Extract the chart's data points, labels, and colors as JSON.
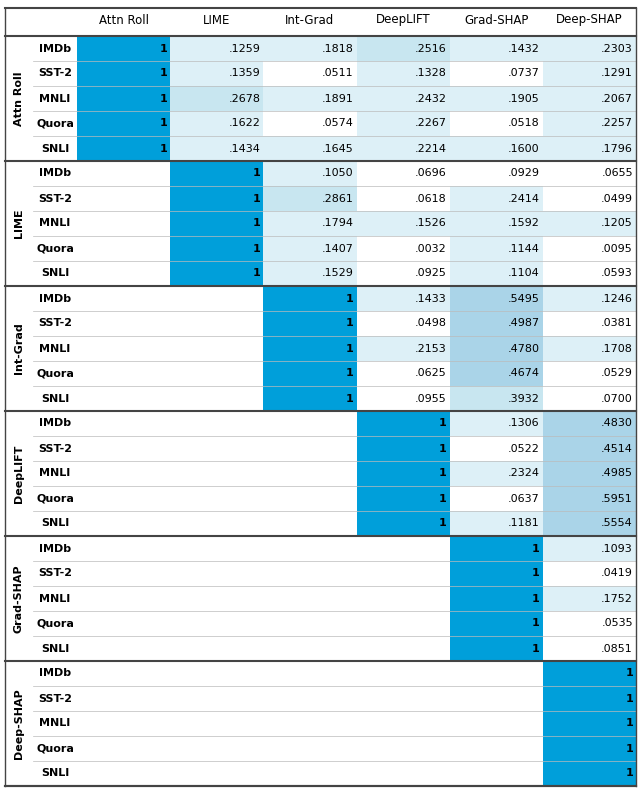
{
  "col_headers": [
    "Attn Roll",
    "LIME",
    "Int-Grad",
    "DeepLIFT",
    "Grad-SHAP",
    "Deep-SHAP"
  ],
  "row_groups": [
    "Attn Roll",
    "LIME",
    "Int-Grad",
    "DeepLIFT",
    "Grad-SHAP",
    "Deep-SHAP"
  ],
  "datasets": [
    "IMDb",
    "SST-2",
    "MNLI",
    "Quora",
    "SNLI"
  ],
  "matrix": [
    [
      [
        1.0,
        0.1259,
        0.1818,
        0.2516,
        0.1432,
        0.2303
      ],
      [
        1.0,
        0.1359,
        0.0511,
        0.1328,
        0.0737,
        0.1291
      ],
      [
        1.0,
        0.2678,
        0.1891,
        0.2432,
        0.1905,
        0.2067
      ],
      [
        1.0,
        0.1622,
        0.0574,
        0.2267,
        0.0518,
        0.2257
      ],
      [
        1.0,
        0.1434,
        0.1645,
        0.2214,
        0.16,
        0.1796
      ]
    ],
    [
      [
        null,
        1.0,
        0.105,
        0.0696,
        0.0929,
        0.0655
      ],
      [
        null,
        1.0,
        0.2861,
        0.0618,
        0.2414,
        0.0499
      ],
      [
        null,
        1.0,
        0.1794,
        0.1526,
        0.1592,
        0.1205
      ],
      [
        null,
        1.0,
        0.1407,
        0.0032,
        0.1144,
        0.0095
      ],
      [
        null,
        1.0,
        0.1529,
        0.0925,
        0.1104,
        0.0593
      ]
    ],
    [
      [
        null,
        null,
        1.0,
        0.1433,
        0.5495,
        0.1246
      ],
      [
        null,
        null,
        1.0,
        0.0498,
        0.4987,
        0.0381
      ],
      [
        null,
        null,
        1.0,
        0.2153,
        0.478,
        0.1708
      ],
      [
        null,
        null,
        1.0,
        0.0625,
        0.4674,
        0.0529
      ],
      [
        null,
        null,
        1.0,
        0.0955,
        0.3932,
        0.07
      ]
    ],
    [
      [
        null,
        null,
        null,
        1.0,
        0.1306,
        0.483
      ],
      [
        null,
        null,
        null,
        1.0,
        0.0522,
        0.4514
      ],
      [
        null,
        null,
        null,
        1.0,
        0.2324,
        0.4985
      ],
      [
        null,
        null,
        null,
        1.0,
        0.0637,
        0.5951
      ],
      [
        null,
        null,
        null,
        1.0,
        0.1181,
        0.5554
      ]
    ],
    [
      [
        null,
        null,
        null,
        null,
        1.0,
        0.1093
      ],
      [
        null,
        null,
        null,
        null,
        1.0,
        0.0419
      ],
      [
        null,
        null,
        null,
        null,
        1.0,
        0.1752
      ],
      [
        null,
        null,
        null,
        null,
        1.0,
        0.0535
      ],
      [
        null,
        null,
        null,
        null,
        1.0,
        0.0851
      ]
    ],
    [
      [
        null,
        null,
        null,
        null,
        null,
        1.0
      ],
      [
        null,
        null,
        null,
        null,
        null,
        1.0
      ],
      [
        null,
        null,
        null,
        null,
        null,
        1.0
      ],
      [
        null,
        null,
        null,
        null,
        null,
        1.0
      ],
      [
        null,
        null,
        null,
        null,
        null,
        1.0
      ]
    ]
  ],
  "blue_strong": "#009fda",
  "blue_light1": "#aad4e8",
  "blue_light2": "#c8e6f0",
  "blue_light3": "#ddf0f7",
  "white": "#ffffff",
  "text_color": "#000000",
  "divider_heavy": "#444444",
  "divider_light": "#bbbbbb",
  "figw": 6.4,
  "figh": 7.9,
  "dpi": 100
}
